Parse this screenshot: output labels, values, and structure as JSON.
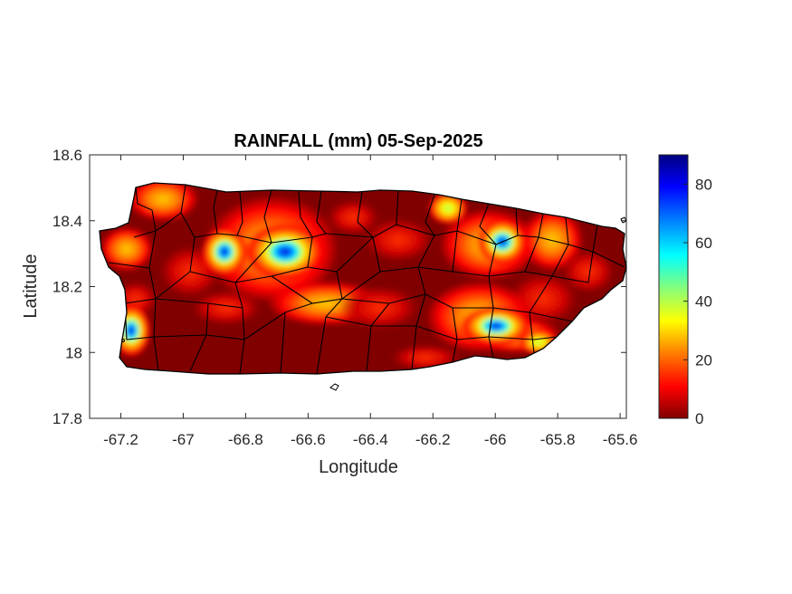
{
  "figure": {
    "title": "RAINFALL (mm) 05-Sep-2025",
    "xlabel": "Longitude",
    "ylabel": "Latitude"
  },
  "chart_data": {
    "type": "heatmap",
    "title": "RAINFALL (mm) 05-Sep-2025",
    "xlabel": "Longitude",
    "ylabel": "Latitude",
    "xlim": [
      -67.3,
      -65.58
    ],
    "ylim": [
      17.8,
      18.6
    ],
    "xticks": [
      "-67.2",
      "-67",
      "-66.8",
      "-66.6",
      "-66.4",
      "-66.2",
      "-66",
      "-65.8",
      "-65.6"
    ],
    "yticks": [
      "17.8",
      "18",
      "18.2",
      "18.4",
      "18.6"
    ],
    "colorbar": {
      "range": [
        0,
        90
      ],
      "ticks": [
        "0",
        "20",
        "40",
        "60",
        "80"
      ],
      "colormap": [
        "#800000",
        "#ff0000",
        "#ff8000",
        "#ffff00",
        "#80ff80",
        "#00ffff",
        "#0080ff",
        "#0000ff",
        "#000080"
      ]
    },
    "rain_maxima": [
      {
        "lon": -67.18,
        "lat": 18.07,
        "mm": 85
      },
      {
        "lon": -66.88,
        "lat": 18.31,
        "mm": 80
      },
      {
        "lon": -66.68,
        "lat": 18.31,
        "mm": 75
      },
      {
        "lon": -66.14,
        "lat": 18.43,
        "mm": 45
      },
      {
        "lon": -65.97,
        "lat": 18.33,
        "mm": 80
      },
      {
        "lon": -65.99,
        "lat": 18.09,
        "mm": 90
      },
      {
        "lon": -65.88,
        "lat": 18.04,
        "mm": 40
      }
    ],
    "background": "#800000",
    "grid": false
  }
}
